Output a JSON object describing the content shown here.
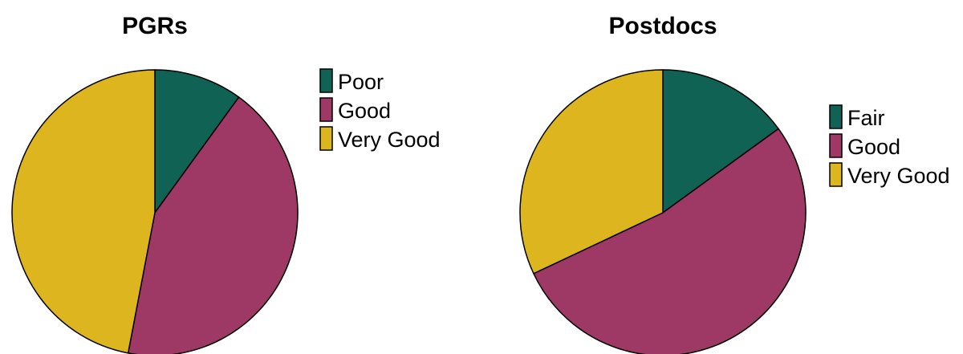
{
  "chart_data": [
    {
      "type": "pie",
      "title": "PGRs",
      "categories": [
        "Poor",
        "Good",
        "Very Good"
      ],
      "values": [
        10,
        43,
        47
      ],
      "colors": [
        "#106354",
        "#9e3865",
        "#ddb51f"
      ],
      "legend": "right"
    },
    {
      "type": "pie",
      "title": "Postdocs",
      "categories": [
        "Fair",
        "Good",
        "Very Good"
      ],
      "values": [
        15,
        53,
        32
      ],
      "colors": [
        "#106354",
        "#9e3865",
        "#ddb51f"
      ],
      "legend": "right"
    }
  ]
}
